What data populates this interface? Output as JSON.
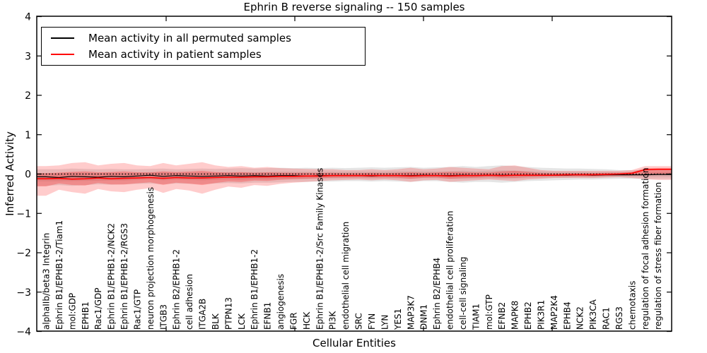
{
  "chart_data": {
    "type": "line",
    "title": "Ephrin B reverse signaling -- 150 samples",
    "xlabel": "Cellular Entities",
    "ylabel": "Inferred Activity",
    "ylim": [
      -4,
      4
    ],
    "yticks": [
      -4,
      -3,
      -2,
      -1,
      0,
      1,
      2,
      3,
      4
    ],
    "grid": false,
    "legend_position": "upper left",
    "legend": [
      {
        "label": "Mean activity in all permuted samples",
        "color": "#000000"
      },
      {
        "label": "Mean activity in patient samples",
        "color": "#ff0000"
      }
    ],
    "categories": [
      "alphaIIb/beta3 Integrin",
      "Ephrin B1/EPHB1-2/Tiam1",
      "mol:GDP",
      "EPHB1",
      "Rac1/GDP",
      "Ephrin B1/EPHB1-2/NCK2",
      "Ephrin B1/EPHB1-2/RGS3",
      "Rac1/GTP",
      "neuron projection morphogenesis",
      "ITGB3",
      "Ephrin B2/EPHB1-2",
      "cell adhesion",
      "ITGA2B",
      "BLK",
      "PTPN13",
      "LCK",
      "Ephrin B1/EPHB1-2",
      "EFNB1",
      "angiogenesis",
      "FGR",
      "HCK",
      "Ephrin B1/EPHB1-2/Src Family Kinases",
      "PI3K",
      "endothelial cell migration",
      "SRC",
      "FYN",
      "LYN",
      "YES1",
      "MAP3K7",
      "DNM1",
      "Ephrin B2/EPHB4",
      "endothelial cell proliferation",
      "cell-cell signaling",
      "TIAM1",
      "mol:GTP",
      "EFNB2",
      "MAPK8",
      "EPHB2",
      "PIK3R1",
      "MAP2K4",
      "EPHB4",
      "NCK2",
      "PIK3CA",
      "RAC1",
      "RGS3",
      "chemotaxis",
      "regulation of focal adhesion formation",
      "regulation of stress fiber formation"
    ],
    "series": [
      {
        "name": "zero-reference",
        "style": "dotted",
        "color": "#000000",
        "width": 1.4,
        "value": 0
      },
      {
        "name": "Mean activity in all permuted samples",
        "style": "solid",
        "color": "#000000",
        "width": 1.2,
        "values": [
          -0.07,
          -0.09,
          -0.06,
          -0.07,
          -0.08,
          -0.06,
          -0.07,
          -0.05,
          -0.03,
          -0.06,
          -0.04,
          -0.05,
          -0.06,
          -0.05,
          -0.04,
          -0.05,
          -0.04,
          -0.05,
          -0.04,
          -0.04,
          -0.05,
          -0.04,
          -0.04,
          -0.04,
          -0.04,
          -0.05,
          -0.04,
          -0.04,
          -0.04,
          -0.03,
          -0.04,
          -0.04,
          -0.03,
          -0.04,
          -0.03,
          -0.03,
          -0.03,
          -0.03,
          -0.03,
          -0.03,
          -0.03,
          -0.02,
          -0.03,
          -0.02,
          -0.02,
          -0.02,
          -0.02,
          -0.01
        ]
      },
      {
        "name": "Mean activity in patient samples",
        "style": "solid",
        "color": "#ff0000",
        "width": 1.6,
        "values": [
          -0.12,
          -0.11,
          -0.13,
          -0.12,
          -0.1,
          -0.12,
          -0.11,
          -0.1,
          -0.09,
          -0.11,
          -0.09,
          -0.1,
          -0.1,
          -0.09,
          -0.08,
          -0.08,
          -0.07,
          -0.07,
          -0.06,
          -0.06,
          -0.05,
          -0.05,
          -0.04,
          -0.04,
          -0.04,
          -0.04,
          -0.04,
          -0.04,
          -0.05,
          -0.04,
          -0.04,
          -0.05,
          -0.04,
          -0.04,
          -0.03,
          -0.04,
          -0.03,
          -0.03,
          -0.03,
          -0.03,
          -0.02,
          -0.02,
          -0.02,
          -0.01,
          0.0,
          0.02,
          0.11,
          0.12
        ]
      }
    ],
    "bands": [
      {
        "name": "permuted-std-band",
        "color": "#8a8a8a",
        "outer_opacity": 0.22,
        "inner_opacity": 0.2,
        "inner_factor": 0.5,
        "center_index": 1,
        "upper": [
          0.12,
          0.12,
          0.14,
          0.13,
          0.12,
          0.13,
          0.12,
          0.12,
          0.13,
          0.14,
          0.12,
          0.13,
          0.14,
          0.13,
          0.14,
          0.15,
          0.14,
          0.15,
          0.16,
          0.15,
          0.16,
          0.15,
          0.16,
          0.15,
          0.16,
          0.17,
          0.16,
          0.17,
          0.18,
          0.16,
          0.17,
          0.18,
          0.2,
          0.18,
          0.2,
          0.22,
          0.2,
          0.18,
          0.16,
          0.15,
          0.14,
          0.14,
          0.13,
          0.12,
          0.1,
          0.1,
          0.1,
          0.1
        ],
        "lower": [
          -0.3,
          -0.28,
          -0.3,
          -0.28,
          -0.26,
          -0.27,
          -0.26,
          -0.25,
          -0.24,
          -0.26,
          -0.24,
          -0.25,
          -0.26,
          -0.24,
          -0.23,
          -0.24,
          -0.22,
          -0.22,
          -0.21,
          -0.2,
          -0.2,
          -0.19,
          -0.19,
          -0.18,
          -0.18,
          -0.19,
          -0.18,
          -0.19,
          -0.2,
          -0.18,
          -0.18,
          -0.2,
          -0.22,
          -0.2,
          -0.2,
          -0.22,
          -0.2,
          -0.18,
          -0.17,
          -0.16,
          -0.15,
          -0.14,
          -0.14,
          -0.13,
          -0.12,
          -0.12,
          -0.12,
          -0.12
        ]
      },
      {
        "name": "patient-std-band",
        "color": "#ff0000",
        "outer_opacity": 0.2,
        "inner_opacity": 0.24,
        "inner_factor": 0.45,
        "center_index": 2,
        "upper": [
          0.2,
          0.22,
          0.28,
          0.3,
          0.22,
          0.26,
          0.28,
          0.22,
          0.2,
          0.28,
          0.22,
          0.26,
          0.3,
          0.22,
          0.18,
          0.2,
          0.16,
          0.18,
          0.15,
          0.14,
          0.13,
          0.12,
          0.12,
          0.1,
          0.1,
          0.12,
          0.1,
          0.12,
          0.16,
          0.12,
          0.14,
          0.18,
          0.16,
          0.14,
          0.12,
          0.2,
          0.22,
          0.16,
          0.1,
          0.08,
          0.08,
          0.08,
          0.08,
          0.08,
          0.08,
          0.1,
          0.2,
          0.2
        ],
        "lower": [
          -0.55,
          -0.4,
          -0.46,
          -0.5,
          -0.38,
          -0.44,
          -0.46,
          -0.4,
          -0.36,
          -0.48,
          -0.38,
          -0.42,
          -0.5,
          -0.4,
          -0.32,
          -0.35,
          -0.28,
          -0.3,
          -0.25,
          -0.22,
          -0.2,
          -0.18,
          -0.16,
          -0.15,
          -0.14,
          -0.16,
          -0.14,
          -0.16,
          -0.2,
          -0.16,
          -0.15,
          -0.2,
          -0.18,
          -0.16,
          -0.14,
          -0.16,
          -0.18,
          -0.14,
          -0.12,
          -0.1,
          -0.1,
          -0.1,
          -0.1,
          -0.09,
          -0.08,
          -0.1,
          -0.13,
          -0.15
        ]
      }
    ]
  }
}
